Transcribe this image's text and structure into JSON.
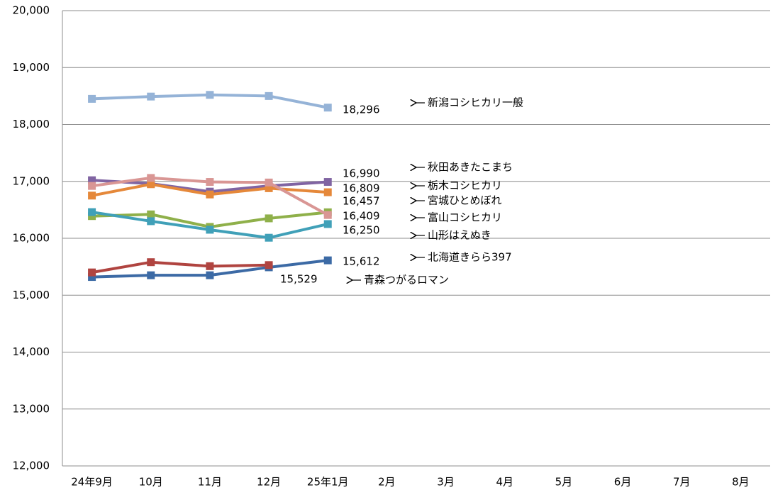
{
  "chart_data": {
    "type": "line",
    "categories": [
      "24年9月",
      "10月",
      "11月",
      "12月",
      "25年1月",
      "2月",
      "3月",
      "4月",
      "5月",
      "6月",
      "7月",
      "8月"
    ],
    "ylim": [
      12000,
      20000
    ],
    "yticks": [
      {
        "value": 12000,
        "label": "12,000"
      },
      {
        "value": 13000,
        "label": "13,000"
      },
      {
        "value": 14000,
        "label": "14,000"
      },
      {
        "value": 15000,
        "label": "15,000"
      },
      {
        "value": 16000,
        "label": "16,000"
      },
      {
        "value": 17000,
        "label": "17,000"
      },
      {
        "value": 18000,
        "label": "18,000"
      },
      {
        "value": 19000,
        "label": "19,000"
      },
      {
        "value": 20000,
        "label": "20,000"
      }
    ],
    "grid": true,
    "series": [
      {
        "name": "新潟コシヒカリ一般",
        "color": "#95b3d7",
        "values": [
          18450,
          18490,
          18520,
          18500,
          18296,
          null,
          null,
          null,
          null,
          null,
          null,
          null
        ],
        "value_labels": [
          null,
          null,
          null,
          null,
          "18,296",
          null,
          null,
          null,
          null,
          null,
          null,
          null
        ]
      },
      {
        "name": "秋田あきたこまち",
        "color": "#8064a2",
        "values": [
          17020,
          16960,
          16820,
          16920,
          16990,
          null,
          null,
          null,
          null,
          null,
          null,
          null
        ],
        "value_labels": [
          null,
          null,
          null,
          null,
          "16,990",
          null,
          null,
          null,
          null,
          null,
          null,
          null
        ]
      },
      {
        "name": "栃木コシヒカリ",
        "color": "#e5883a",
        "values": [
          16750,
          16950,
          16770,
          16880,
          16809,
          null,
          null,
          null,
          null,
          null,
          null,
          null
        ],
        "value_labels": [
          null,
          null,
          null,
          null,
          "16,809",
          null,
          null,
          null,
          null,
          null,
          null,
          null
        ]
      },
      {
        "name": "宮城ひとめぼれ",
        "color": "#8fb04a",
        "values": [
          16390,
          16420,
          16200,
          16350,
          16457,
          null,
          null,
          null,
          null,
          null,
          null,
          null
        ],
        "value_labels": [
          null,
          null,
          null,
          null,
          "16,457",
          null,
          null,
          null,
          null,
          null,
          null,
          null
        ]
      },
      {
        "name": "富山コシヒカリ",
        "color": "#d99694",
        "values": [
          16920,
          17060,
          16990,
          16980,
          16409,
          null,
          null,
          null,
          null,
          null,
          null,
          null
        ],
        "value_labels": [
          null,
          null,
          null,
          null,
          "16,409",
          null,
          null,
          null,
          null,
          null,
          null,
          null
        ]
      },
      {
        "name": "山形はえぬき",
        "color": "#40a0b8",
        "values": [
          16460,
          16300,
          16150,
          16010,
          16250,
          null,
          null,
          null,
          null,
          null,
          null,
          null
        ],
        "value_labels": [
          null,
          null,
          null,
          null,
          "16,250",
          null,
          null,
          null,
          null,
          null,
          null,
          null
        ]
      },
      {
        "name": "北海道きらら397",
        "color": "#3c6aa5",
        "values": [
          15320,
          15350,
          15350,
          15490,
          15612,
          null,
          null,
          null,
          null,
          null,
          null,
          null
        ],
        "value_labels": [
          null,
          null,
          null,
          null,
          "15,612",
          null,
          null,
          null,
          null,
          null,
          null,
          null
        ]
      },
      {
        "name": "青森つがるロマン",
        "color": "#b04440",
        "values": [
          15400,
          15580,
          15510,
          15529,
          null,
          null,
          null,
          null,
          null,
          null,
          null,
          null
        ],
        "value_labels": [
          null,
          null,
          null,
          "15,529",
          null,
          null,
          null,
          null,
          null,
          null,
          null,
          null
        ]
      }
    ]
  }
}
